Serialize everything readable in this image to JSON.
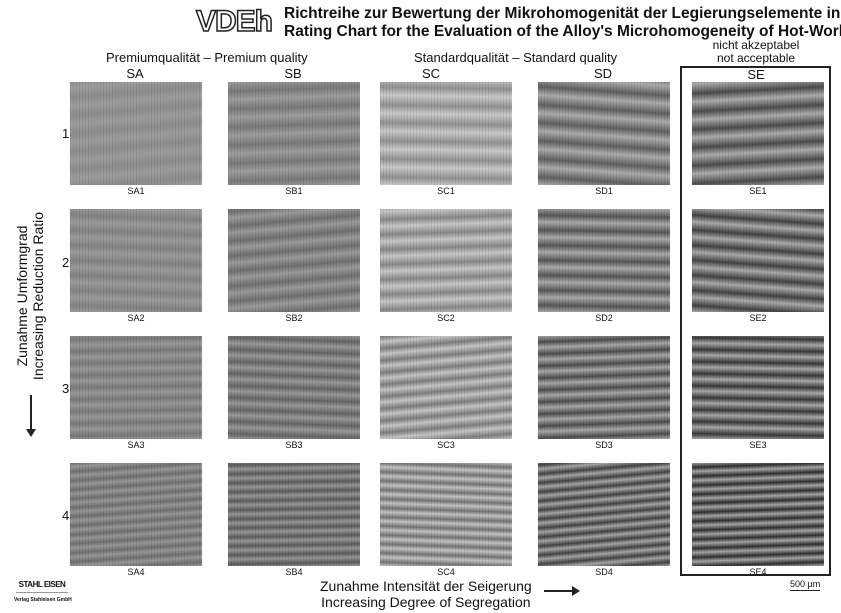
{
  "header": {
    "logo": "VDEh",
    "title_de": "Richtreihe zur Bewertung der Mikrohomogenität der Legierungselemente in Warmarbeitsstählen",
    "title_en": "Rating Chart for the Evaluation of the Alloy's Microhomogeneity of Hot-Work Tool Steels"
  },
  "groups": {
    "premium": "Premiumqualität  –  Premium quality",
    "standard": "Standardqualität  –  Standard quality",
    "not_acceptable_de": "nicht akzeptabel",
    "not_acceptable_en": "not acceptable"
  },
  "columns": [
    "SA",
    "SB",
    "SC",
    "SD",
    "SE"
  ],
  "rows": [
    "1",
    "2",
    "3",
    "4"
  ],
  "samples": [
    [
      "SA1",
      "SB1",
      "SC1",
      "SD1",
      "SE1"
    ],
    [
      "SA2",
      "SB2",
      "SC2",
      "SD2",
      "SE2"
    ],
    [
      "SA3",
      "SB3",
      "SC3",
      "SD3",
      "SE3"
    ],
    [
      "SA4",
      "SB4",
      "SC4",
      "SD4",
      "SE4"
    ]
  ],
  "y_axis": {
    "de": "Zunahme Umformgrad",
    "en": "Increasing Reduction Ratio"
  },
  "x_axis": {
    "de": "Zunahme Intensität der Seigerung",
    "en": "Increasing Degree of Segregation"
  },
  "scale_bar": "500 µm",
  "publisher": {
    "logo": "STAHL EISEN",
    "name": "Verlag Stahleisen GmbH"
  }
}
